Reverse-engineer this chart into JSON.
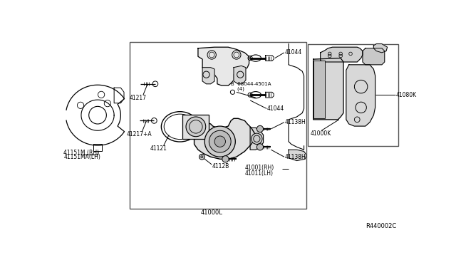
{
  "bg_color": "#ffffff",
  "diagram_code": "R440002C",
  "lc": "#000000",
  "tc": "#000000",
  "gray": "#888888",
  "fs": 5.5,
  "labels": {
    "main_box": "41000L",
    "p41044a": "41044",
    "p41044b": "41044",
    "p08044": "B  08044-4501A\n    (4)",
    "p41217": "41217",
    "p41217a": "41217+A",
    "p41121": "41121",
    "p4112b": "4112B",
    "p41138h_top": "41138H",
    "p41138h_bot": "41138H",
    "p41001rh": "41001(RH)",
    "p41011lh": "41011(LH)",
    "p41000k": "41000K",
    "p41080k": "41080K",
    "p41151m": "41151M (RH)",
    "p41151ma": "41151MA(LH)"
  }
}
